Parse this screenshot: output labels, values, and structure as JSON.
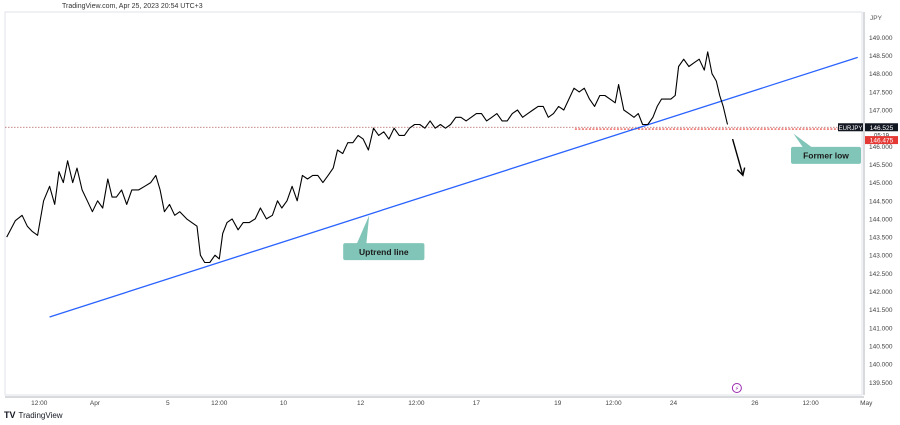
{
  "header": {
    "source_line": "TradingView.com, Apr 25, 2023 20:54 UTC+3"
  },
  "brand": {
    "logo_glyph": "TV",
    "name": "TradingView"
  },
  "chart_data": {
    "type": "line",
    "symbol": "EURJPY",
    "currency": "JPY",
    "y_ticks": [
      139.5,
      140.0,
      140.5,
      141.0,
      141.5,
      142.0,
      142.5,
      143.0,
      143.5,
      144.0,
      144.5,
      145.0,
      145.5,
      146.0,
      146.5,
      147.0,
      147.5,
      148.0,
      148.5,
      149.0
    ],
    "y_tick_labels": [
      "139.500",
      "140.000",
      "140.500",
      "141.000",
      "141.500",
      "142.000",
      "142.500",
      "143.000",
      "143.500",
      "144.000",
      "144.500",
      "145.000",
      "145.500",
      "146.000",
      "146.500",
      "147.000",
      "147.500",
      "148.000",
      "148.500",
      "149.000"
    ],
    "ylim": [
      139.15,
      149.7
    ],
    "x_domain": [
      0,
      100
    ],
    "x_ticks": [
      {
        "label": "12:00",
        "x": 4
      },
      {
        "label": "Apr",
        "x": 10.5
      },
      {
        "label": "5",
        "x": 19
      },
      {
        "label": "12:00",
        "x": 25
      },
      {
        "label": "10",
        "x": 32.5
      },
      {
        "label": "12",
        "x": 41.5
      },
      {
        "label": "12:00",
        "x": 48
      },
      {
        "label": "17",
        "x": 55
      },
      {
        "label": "19",
        "x": 64.5
      },
      {
        "label": "12:00",
        "x": 71
      },
      {
        "label": "24",
        "x": 78
      },
      {
        "label": "26",
        "x": 87.5
      },
      {
        "label": "12:00",
        "x": 94
      },
      {
        "label": "May",
        "x": 100.5
      }
    ],
    "price_series": {
      "name": "EURJPY",
      "color": "#000000",
      "points": [
        [
          0.2,
          143.5
        ],
        [
          1.2,
          143.95
        ],
        [
          2.0,
          144.1
        ],
        [
          2.6,
          143.8
        ],
        [
          3.2,
          143.65
        ],
        [
          3.8,
          143.55
        ],
        [
          4.5,
          144.5
        ],
        [
          5.2,
          144.9
        ],
        [
          5.8,
          144.4
        ],
        [
          6.3,
          145.3
        ],
        [
          6.8,
          145.0
        ],
        [
          7.3,
          145.6
        ],
        [
          7.9,
          145.0
        ],
        [
          8.4,
          145.4
        ],
        [
          9.0,
          144.8
        ],
        [
          9.6,
          144.5
        ],
        [
          10.2,
          144.2
        ],
        [
          10.8,
          144.5
        ],
        [
          11.4,
          144.3
        ],
        [
          12.0,
          145.1
        ],
        [
          12.5,
          144.6
        ],
        [
          13.0,
          144.6
        ],
        [
          13.6,
          144.8
        ],
        [
          14.2,
          144.4
        ],
        [
          14.8,
          144.8
        ],
        [
          15.6,
          144.8
        ],
        [
          16.3,
          144.9
        ],
        [
          17.0,
          145.0
        ],
        [
          17.6,
          145.2
        ],
        [
          18.1,
          144.8
        ],
        [
          18.6,
          144.2
        ],
        [
          19.2,
          144.4
        ],
        [
          19.8,
          144.1
        ],
        [
          20.4,
          144.2
        ],
        [
          21.2,
          144.0
        ],
        [
          21.8,
          143.9
        ],
        [
          22.4,
          143.8
        ],
        [
          22.8,
          143.0
        ],
        [
          23.3,
          142.8
        ],
        [
          23.9,
          142.8
        ],
        [
          24.5,
          143.0
        ],
        [
          25.0,
          142.9
        ],
        [
          25.4,
          143.6
        ],
        [
          25.9,
          143.9
        ],
        [
          26.5,
          144.0
        ],
        [
          27.2,
          143.7
        ],
        [
          27.8,
          143.9
        ],
        [
          28.5,
          143.9
        ],
        [
          29.2,
          144.0
        ],
        [
          29.8,
          144.3
        ],
        [
          30.5,
          144.0
        ],
        [
          31.2,
          144.1
        ],
        [
          31.8,
          144.5
        ],
        [
          32.3,
          144.3
        ],
        [
          32.9,
          144.5
        ],
        [
          33.5,
          144.9
        ],
        [
          34.1,
          144.5
        ],
        [
          34.7,
          145.2
        ],
        [
          35.3,
          145.1
        ],
        [
          35.9,
          145.2
        ],
        [
          36.5,
          145.2
        ],
        [
          37.1,
          145.0
        ],
        [
          37.7,
          145.2
        ],
        [
          38.3,
          145.4
        ],
        [
          38.8,
          145.9
        ],
        [
          39.4,
          145.8
        ],
        [
          40.0,
          146.1
        ],
        [
          40.6,
          146.1
        ],
        [
          41.2,
          146.3
        ],
        [
          41.8,
          146.2
        ],
        [
          42.4,
          145.9
        ],
        [
          43.0,
          146.5
        ],
        [
          43.6,
          146.3
        ],
        [
          44.2,
          146.4
        ],
        [
          44.8,
          146.2
        ],
        [
          45.4,
          146.5
        ],
        [
          46.0,
          146.3
        ],
        [
          46.6,
          146.3
        ],
        [
          47.2,
          146.5
        ],
        [
          47.8,
          146.6
        ],
        [
          48.4,
          146.6
        ],
        [
          49.0,
          146.5
        ],
        [
          49.6,
          146.7
        ],
        [
          50.2,
          146.5
        ],
        [
          50.8,
          146.6
        ],
        [
          51.4,
          146.5
        ],
        [
          52.0,
          146.6
        ],
        [
          52.6,
          146.8
        ],
        [
          53.2,
          146.8
        ],
        [
          53.8,
          146.7
        ],
        [
          54.4,
          146.8
        ],
        [
          55.0,
          146.9
        ],
        [
          55.6,
          146.9
        ],
        [
          56.2,
          146.7
        ],
        [
          56.8,
          146.8
        ],
        [
          57.4,
          146.9
        ],
        [
          58.0,
          146.7
        ],
        [
          58.6,
          146.7
        ],
        [
          59.2,
          146.9
        ],
        [
          59.8,
          147.0
        ],
        [
          60.4,
          146.8
        ],
        [
          61.0,
          146.9
        ],
        [
          61.6,
          147.0
        ],
        [
          62.2,
          147.1
        ],
        [
          62.8,
          147.1
        ],
        [
          63.4,
          146.8
        ],
        [
          64.0,
          146.9
        ],
        [
          64.6,
          147.1
        ],
        [
          65.2,
          147.0
        ],
        [
          65.8,
          147.3
        ],
        [
          66.4,
          147.6
        ],
        [
          67.0,
          147.5
        ],
        [
          67.6,
          147.6
        ],
        [
          68.2,
          147.3
        ],
        [
          68.8,
          147.1
        ],
        [
          69.4,
          147.4
        ],
        [
          70.0,
          147.4
        ],
        [
          70.6,
          147.3
        ],
        [
          71.2,
          147.2
        ],
        [
          71.6,
          147.7
        ],
        [
          72.2,
          147.0
        ],
        [
          72.8,
          146.9
        ],
        [
          73.4,
          146.8
        ],
        [
          73.9,
          146.9
        ],
        [
          74.4,
          146.6
        ],
        [
          75.0,
          146.6
        ],
        [
          75.6,
          146.8
        ],
        [
          76.1,
          147.1
        ],
        [
          76.6,
          147.3
        ],
        [
          77.2,
          147.3
        ],
        [
          77.7,
          147.3
        ],
        [
          78.2,
          147.4
        ],
        [
          78.6,
          148.2
        ],
        [
          79.2,
          148.4
        ],
        [
          79.8,
          148.2
        ],
        [
          80.4,
          148.3
        ],
        [
          81.0,
          148.4
        ],
        [
          81.6,
          148.1
        ],
        [
          82.0,
          148.6
        ],
        [
          82.5,
          148.0
        ],
        [
          83.0,
          147.8
        ],
        [
          83.4,
          147.4
        ],
        [
          83.8,
          147.1
        ],
        [
          84.3,
          146.6
        ]
      ]
    },
    "trend_line": {
      "name": "Uptrend line",
      "color": "#2962ff",
      "from": [
        5.2,
        141.3
      ],
      "to": [
        99.5,
        148.45
      ]
    },
    "former_low_line": {
      "name": "Former low",
      "color": "#e53935",
      "value": 146.475,
      "x_from": 66.5
    },
    "price_line": {
      "color": "#b06060",
      "value": 146.525
    },
    "annotations": [
      {
        "text": "Uptrend line",
        "bg": "#80c5b7",
        "x": 44.2,
        "y": 143.1,
        "pointer_to": [
          42.5,
          144.1
        ]
      },
      {
        "text": "Former low",
        "bg": "#80c5b7",
        "x": 95.8,
        "y": 145.75,
        "pointer_to": [
          92.0,
          146.35
        ]
      }
    ],
    "drop_arrow": {
      "from": [
        84.9,
        146.2
      ],
      "to": [
        86.1,
        145.2
      ],
      "color": "#000000"
    },
    "price_labels": {
      "symbol_tag": "EURJPY",
      "last_price": "146.525",
      "countdown": "05:19",
      "former_low_price": "146.475"
    },
    "event_marker": {
      "glyph": "⚡",
      "x": 85.4,
      "color": "#9c27b0"
    }
  }
}
